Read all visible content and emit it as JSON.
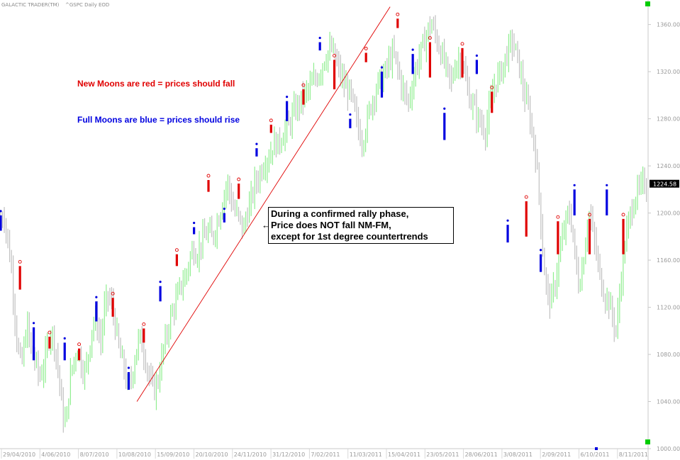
{
  "header": {
    "title": "GALACTIC TRADER(TM)",
    "symbol_period": "^GSPC Daily  EOD"
  },
  "notes": {
    "new_moons": "New Moons are red = prices should fall",
    "full_moons": "Full Moons are blue = prices should rise"
  },
  "callout": {
    "line1": "During a confirmed rally phase,",
    "line2": "Price does NOT fall NM-FM,",
    "line3": "except for 1st degree countertrends"
  },
  "colors": {
    "up_bar": "#90ee90",
    "down_bar": "#c0c0c0",
    "new_moon": "#e00000",
    "full_moon": "#0000e0",
    "trendline": "#e00000",
    "accent_green": "#00cc00"
  },
  "chart_data": {
    "type": "line",
    "yaxis_ticks": [
      "1000.00",
      "1040.00",
      "1080.00",
      "1120.00",
      "1160.00",
      "1200.00",
      "1240.00",
      "1280.00",
      "1320.00",
      "1360.00"
    ],
    "ylim": [
      1000,
      1376
    ],
    "last_price": "1224.58",
    "x_dates": [
      "29/04/2010",
      "4/06/2010",
      "8/07/2010",
      "10/08/2010",
      "15/09/2010",
      "20/10/2010",
      "24/11/2010",
      "31/12/2010",
      "7/02/2011",
      "11/03/2011",
      "15/04/2011",
      "23/05/2011",
      "28/06/2011",
      "3/08/2011",
      "2/09/2011",
      "6/10/2011",
      "8/11/2011"
    ],
    "price_series": {
      "x": [
        0,
        4,
        8,
        13,
        17,
        22,
        27,
        31,
        35,
        40,
        45,
        50,
        56,
        60,
        64,
        68,
        72,
        76,
        80,
        85,
        90,
        95,
        100,
        105,
        110,
        114,
        118,
        122,
        126,
        130,
        135,
        140,
        145,
        150,
        155,
        160,
        165,
        170,
        175,
        180,
        185,
        190,
        195,
        200,
        205,
        210,
        215,
        220,
        225,
        230,
        235,
        240,
        245,
        250,
        255,
        260,
        265,
        270,
        275,
        280,
        285,
        290,
        295,
        300,
        305,
        310,
        315,
        320,
        325,
        330,
        335,
        340,
        345,
        350,
        355,
        360,
        365,
        370,
        375,
        380,
        385,
        390,
        395,
        400,
        405,
        410,
        415,
        420,
        425,
        430,
        435,
        440,
        445,
        450,
        455,
        460,
        465,
        470,
        475,
        480,
        485,
        490,
        495,
        500,
        505,
        510,
        515,
        520,
        525,
        530,
        535,
        540,
        545,
        550,
        555,
        560,
        565,
        570,
        575,
        580,
        585,
        590,
        595,
        600,
        605,
        610,
        615,
        620,
        625,
        630,
        635,
        640,
        645,
        650,
        655,
        660,
        665,
        670,
        675,
        680,
        685,
        690,
        695,
        700,
        705,
        710,
        715,
        720,
        725,
        730,
        735,
        740,
        745,
        750,
        755,
        760,
        765,
        770,
        775,
        780,
        785,
        790,
        795,
        800,
        805,
        810,
        815,
        820,
        825,
        830,
        835,
        840
      ],
      "close": [
        1195,
        1200,
        1180,
        1160,
        1125,
        1085,
        1070,
        1090,
        1105,
        1080,
        1075,
        1060,
        1070,
        1085,
        1100,
        1095,
        1080,
        1060,
        1030,
        1020,
        1060,
        1075,
        1085,
        1070,
        1065,
        1080,
        1100,
        1110,
        1105,
        1090,
        1120,
        1130,
        1120,
        1100,
        1080,
        1070,
        1050,
        1060,
        1080,
        1095,
        1085,
        1070,
        1055,
        1050,
        1060,
        1080,
        1095,
        1110,
        1120,
        1130,
        1140,
        1145,
        1160,
        1170,
        1165,
        1175,
        1180,
        1185,
        1178,
        1190,
        1200,
        1215,
        1225,
        1210,
        1200,
        1195,
        1185,
        1200,
        1210,
        1225,
        1230,
        1240,
        1245,
        1250,
        1260,
        1258,
        1265,
        1270,
        1275,
        1285,
        1290,
        1295,
        1300,
        1305,
        1310,
        1315,
        1320,
        1330,
        1335,
        1340,
        1330,
        1320,
        1310,
        1305,
        1300,
        1285,
        1270,
        1260,
        1275,
        1290,
        1300,
        1310,
        1315,
        1320,
        1330,
        1335,
        1325,
        1310,
        1300,
        1295,
        1310,
        1325,
        1335,
        1345,
        1355,
        1360,
        1350,
        1340,
        1330,
        1320,
        1310,
        1325,
        1330,
        1325,
        1310,
        1295,
        1290,
        1280,
        1275,
        1270,
        1290,
        1305,
        1315,
        1320,
        1330,
        1340,
        1345,
        1335,
        1320,
        1300,
        1290,
        1270,
        1250,
        1210,
        1160,
        1130,
        1125,
        1140,
        1160,
        1180,
        1195,
        1200,
        1170,
        1140,
        1150,
        1180,
        1200,
        1180,
        1160,
        1140,
        1130,
        1125,
        1110,
        1100,
        1140,
        1170,
        1190,
        1205,
        1215,
        1220,
        1225,
        1225
      ],
      "note": "approximate daily closes, index positions only"
    },
    "new_moon_markers": [
      {
        "date_idx": 28,
        "top": 1155,
        "bottom": 1135
      },
      {
        "date_idx": 71,
        "top": 1095,
        "bottom": 1085
      },
      {
        "date_idx": 114,
        "top": 1085,
        "bottom": 1075
      },
      {
        "date_idx": 163,
        "top": 1128,
        "bottom": 1112
      },
      {
        "date_idx": 208,
        "top": 1102,
        "bottom": 1090
      },
      {
        "date_idx": 256,
        "top": 1165,
        "bottom": 1155
      },
      {
        "date_idx": 302,
        "top": 1228,
        "bottom": 1218
      },
      {
        "date_idx": 346,
        "top": 1225,
        "bottom": 1212
      },
      {
        "date_idx": 393,
        "top": 1275,
        "bottom": 1268
      },
      {
        "date_idx": 440,
        "top": 1305,
        "bottom": 1292
      },
      {
        "date_idx": 485,
        "top": 1330,
        "bottom": 1305
      },
      {
        "date_idx": 531,
        "top": 1336,
        "bottom": 1328
      },
      {
        "date_idx": 577,
        "top": 1365,
        "bottom": 1357
      },
      {
        "date_idx": 624,
        "top": 1345,
        "bottom": 1315
      },
      {
        "date_idx": 671,
        "top": 1340,
        "bottom": 1315
      },
      {
        "date_idx": 714,
        "top": 1303,
        "bottom": 1285
      },
      {
        "date_idx": 764,
        "top": 1210,
        "bottom": 1180
      },
      {
        "date_idx": 810,
        "top": 1193,
        "bottom": 1165
      },
      {
        "date_idx": 856,
        "top": 1195,
        "bottom": 1165
      },
      {
        "date_idx": 905,
        "top": 1195,
        "bottom": 1165
      }
    ],
    "full_moon_markers": [
      {
        "date_idx": 0,
        "top": 1198,
        "bottom": 1185
      },
      {
        "date_idx": 48,
        "top": 1103,
        "bottom": 1075
      },
      {
        "date_idx": 93,
        "top": 1090,
        "bottom": 1075
      },
      {
        "date_idx": 139,
        "top": 1125,
        "bottom": 1108
      },
      {
        "date_idx": 186,
        "top": 1065,
        "bottom": 1050
      },
      {
        "date_idx": 232,
        "top": 1138,
        "bottom": 1125
      },
      {
        "date_idx": 281,
        "top": 1188,
        "bottom": 1182
      },
      {
        "date_idx": 325,
        "top": 1200,
        "bottom": 1192
      },
      {
        "date_idx": 372,
        "top": 1255,
        "bottom": 1248
      },
      {
        "date_idx": 416,
        "top": 1295,
        "bottom": 1278
      },
      {
        "date_idx": 464,
        "top": 1345,
        "bottom": 1338
      },
      {
        "date_idx": 508,
        "top": 1280,
        "bottom": 1272
      },
      {
        "date_idx": 554,
        "top": 1320,
        "bottom": 1298
      },
      {
        "date_idx": 599,
        "top": 1335,
        "bottom": 1318
      },
      {
        "date_idx": 645,
        "top": 1285,
        "bottom": 1262
      },
      {
        "date_idx": 692,
        "top": 1330,
        "bottom": 1318
      },
      {
        "date_idx": 737,
        "top": 1190,
        "bottom": 1175
      },
      {
        "date_idx": 785,
        "top": 1165,
        "bottom": 1150
      },
      {
        "date_idx": 834,
        "top": 1220,
        "bottom": 1198
      },
      {
        "date_idx": 881,
        "top": 1220,
        "bottom": 1198
      }
    ],
    "trendline": {
      "from": {
        "x_idx": 198,
        "price": 1040
      },
      "to": {
        "x_idx": 566,
        "price": 1375
      }
    }
  }
}
